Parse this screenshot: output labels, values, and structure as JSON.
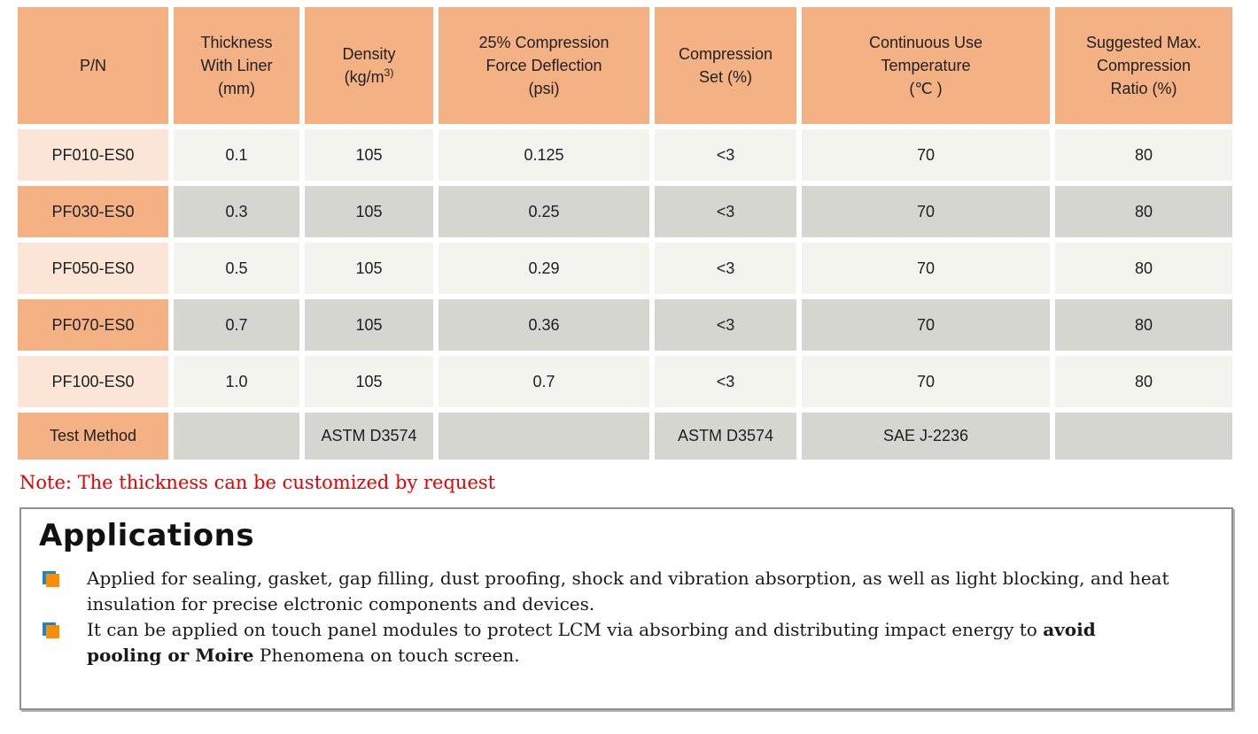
{
  "table": {
    "columns": [
      {
        "label": "P/N"
      },
      {
        "label": "Thickness\nWith Liner\n(mm)"
      },
      {
        "label": "Density\n(kg/m",
        "sup": "3)"
      },
      {
        "label": "25% Compression\nForce Deflection\n(psi)"
      },
      {
        "label": "Compression\nSet (%)"
      },
      {
        "label": "Continuous Use\nTemperature\n(℃ )"
      },
      {
        "label": "Suggested Max.\nCompression\nRatio (%)"
      }
    ],
    "rows": [
      {
        "pn": "PF010-ES0",
        "values": [
          "0.1",
          "105",
          "0.125",
          "<3",
          "70",
          "80"
        ]
      },
      {
        "pn": "PF030-ES0",
        "values": [
          "0.3",
          "105",
          "0.25",
          "<3",
          "70",
          "80"
        ]
      },
      {
        "pn": "PF050-ES0",
        "values": [
          "0.5",
          "105",
          "0.29",
          "<3",
          "70",
          "80"
        ]
      },
      {
        "pn": "PF070-ES0",
        "values": [
          "0.7",
          "105",
          "0.36",
          "<3",
          "70",
          "80"
        ]
      },
      {
        "pn": "PF100-ES0",
        "values": [
          "1.0",
          "105",
          "0.7",
          "<3",
          "70",
          "80"
        ]
      }
    ],
    "test_method_row": {
      "label": "Test Method",
      "values": [
        "",
        "ASTM D3574",
        "",
        "ASTM D3574",
        "SAE J-2236",
        ""
      ]
    }
  },
  "note": "Note: The thickness can be customized by request",
  "applications": {
    "title": "Applications",
    "bullets": [
      {
        "segments": [
          {
            "text": "Applied for sealing, gasket, gap filling, dust proofing, shock and vibration absorption, as well as light blocking, and heat insulation for precise elctronic components and devices.",
            "bold": false
          }
        ]
      },
      {
        "segments": [
          {
            "text": "It can be applied on touch panel modules to protect LCM via absorbing and distributing impact energy to ",
            "bold": false
          },
          {
            "text": "avoid pooling or Moire",
            "bold": true
          },
          {
            "text": " Phenomena on touch screen.",
            "bold": false
          }
        ]
      }
    ]
  },
  "colors": {
    "header_orange": "#F4B183",
    "row_peach": "#FBE5D6",
    "row_light": "#F4F4EF",
    "row_gray": "#D6D6D0",
    "note_red": "#E60000",
    "bullet_orange": "#F78E05",
    "bullet_blue": "#1C86C8"
  }
}
